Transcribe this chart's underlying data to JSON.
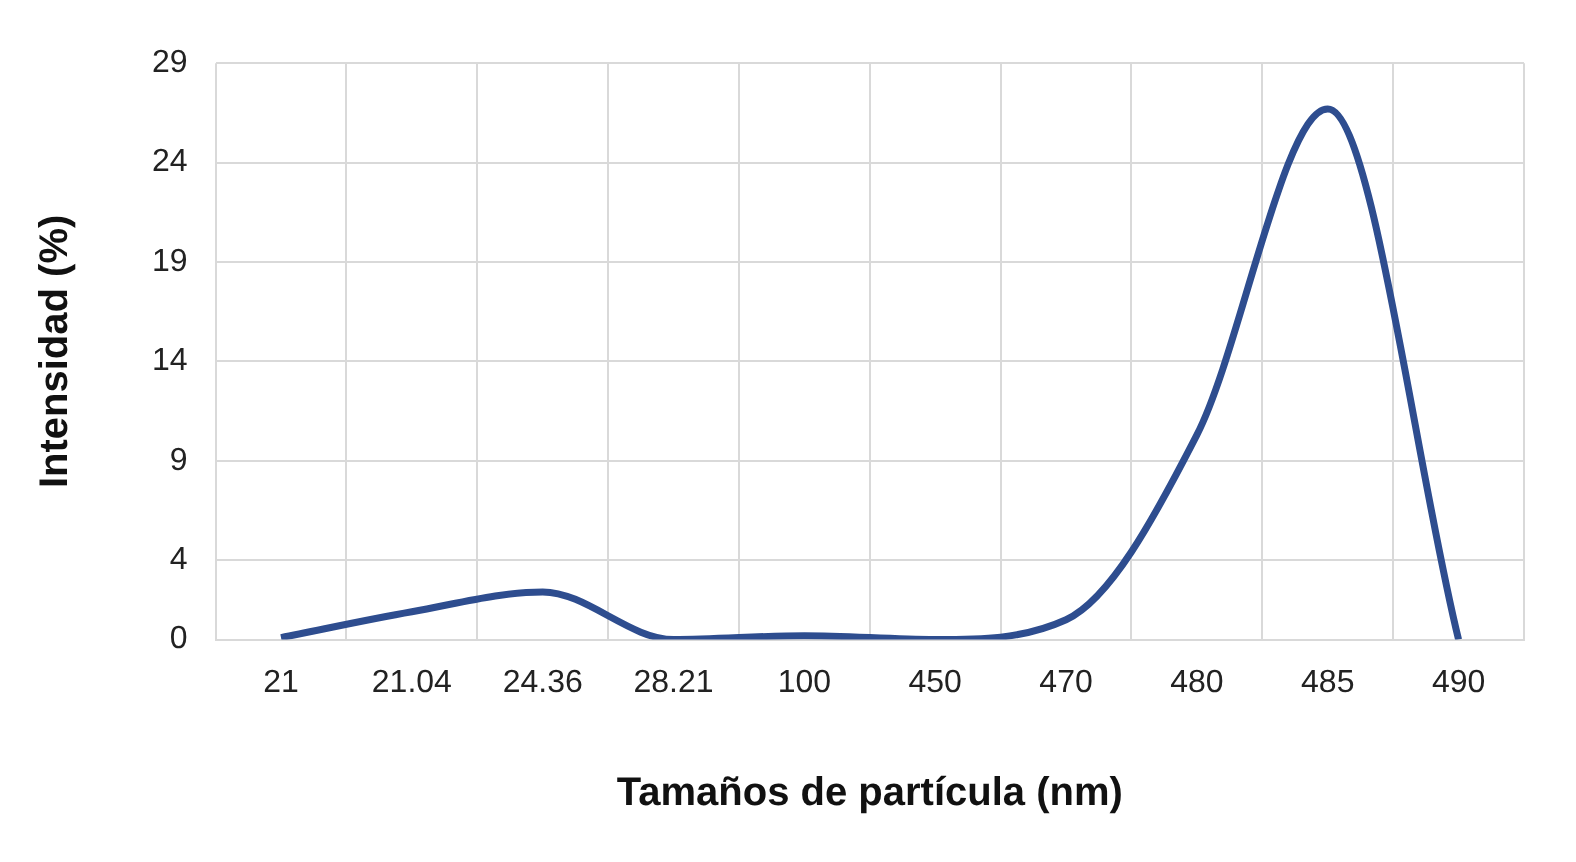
{
  "chart_data": {
    "type": "line",
    "xlabel": "Tamaños de partícula (nm)",
    "ylabel": "Intensidad (%)",
    "categories": [
      "21",
      "21.04",
      "24.36",
      "28.21",
      "100",
      "450",
      "470",
      "480",
      "485",
      "490"
    ],
    "series": [
      {
        "color": "#2e4d8f",
        "values": [
          0.1,
          1.4,
          2.4,
          0,
          0.2,
          0,
          1,
          10.3,
          26.7,
          0
        ]
      }
    ],
    "ylim": [
      0,
      29
    ],
    "yticks": [
      0,
      4,
      9,
      14,
      19,
      24,
      29
    ],
    "grid": true,
    "legend": false,
    "marker": "none",
    "line_style": "solid"
  }
}
